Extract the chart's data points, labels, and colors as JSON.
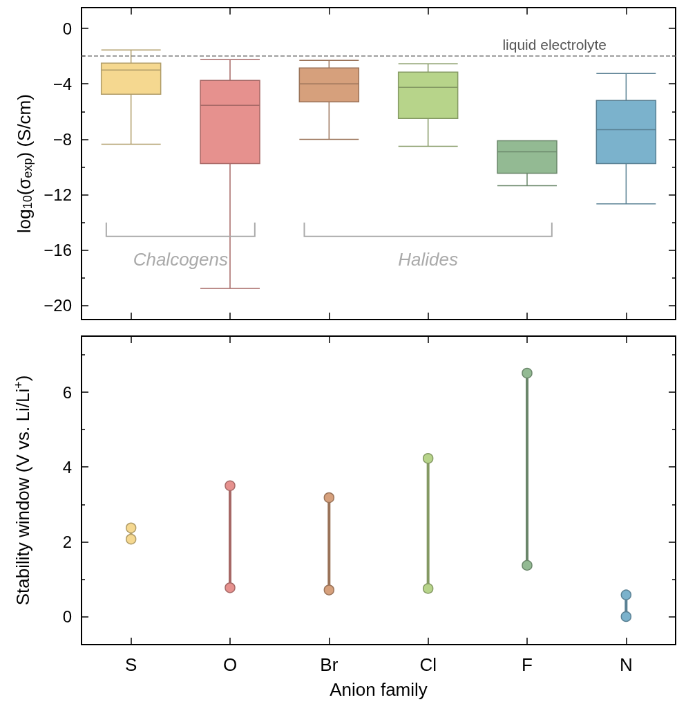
{
  "chart_data": [
    {
      "type": "box",
      "categories": [
        null,
        null,
        null,
        null,
        null,
        null
      ],
      "boxes": [
        {
          "low": -8.35,
          "q1": -4.75,
          "median": -3.0,
          "q3": -2.5,
          "high": -1.55
        },
        {
          "low": -18.75,
          "q1": -9.75,
          "median": -5.55,
          "q3": -3.75,
          "high": -2.25
        },
        {
          "low": -8.0,
          "q1": -5.3,
          "median": -4.0,
          "q3": -2.85,
          "high": -2.3
        },
        {
          "low": -8.5,
          "q1": -6.5,
          "median": -4.25,
          "q3": -3.15,
          "high": -2.55
        },
        {
          "low": -11.35,
          "q1": -10.45,
          "median": -8.9,
          "q3": -8.1,
          "high": -8.1
        },
        {
          "low": -12.65,
          "q1": -9.75,
          "median": -7.3,
          "q3": -5.2,
          "high": -3.25
        }
      ],
      "colors": [
        "#f5d890",
        "#e6918e",
        "#d6a07c",
        "#b7d48a",
        "#93ba93",
        "#7bb2cc"
      ],
      "ylim": [
        -21,
        1.5
      ],
      "yticks": [
        0,
        -4,
        -8,
        -12,
        -16,
        -20
      ],
      "ylabel": "log$_{10}$(σ$_{exp}$) (S/cm)",
      "ref_lines": [
        {
          "axis": "y",
          "value": -2,
          "label": "liquid electrolyte",
          "color": "#808080",
          "line_style": "dashed"
        }
      ],
      "annotations": [
        "Chalcogens",
        "Halides"
      ],
      "tick_labels": "y"
    },
    {
      "type": "line",
      "categories": [
        "S",
        "O",
        "Br",
        "Cl",
        "F",
        "N"
      ],
      "series": [
        {
          "x": [
            "S",
            "S"
          ],
          "values": [
            2.07,
            2.37
          ],
          "color": "#f5d890"
        },
        {
          "x": [
            "O",
            "O"
          ],
          "values": [
            0.77,
            3.5
          ],
          "color": "#e6918e"
        },
        {
          "x": [
            "Br",
            "Br"
          ],
          "values": [
            0.71,
            3.18
          ],
          "color": "#d6a07c"
        },
        {
          "x": [
            "Cl",
            "Cl"
          ],
          "values": [
            0.75,
            4.23
          ],
          "color": "#b7d48a"
        },
        {
          "x": [
            "F",
            "F"
          ],
          "values": [
            1.37,
            6.51
          ],
          "color": "#93ba93"
        },
        {
          "x": [
            "N",
            "N"
          ],
          "values": [
            0.0,
            0.58
          ],
          "color": "#7bb2cc"
        }
      ],
      "marker": "circle",
      "ylim": [
        -0.75,
        7.5
      ],
      "yticks": [
        0,
        2,
        4,
        6
      ],
      "ylabel": "Stability window (V vs. Li/Li$^{+}$)",
      "xlabel": "Anion family"
    }
  ]
}
